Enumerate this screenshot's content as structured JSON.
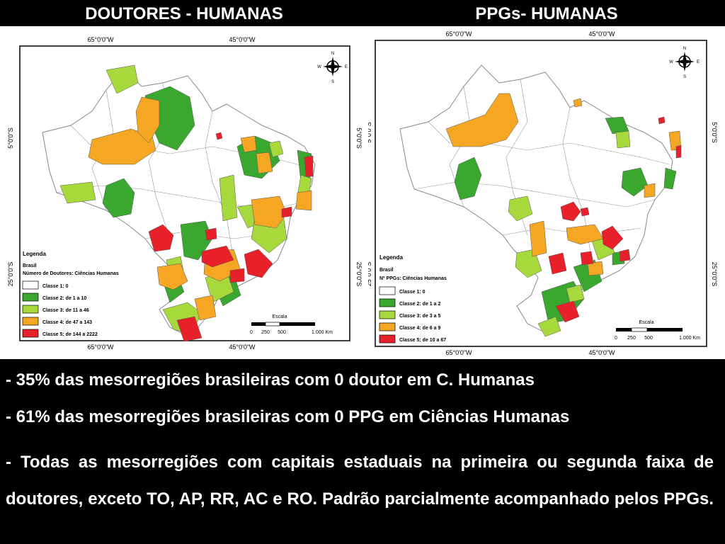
{
  "titles": {
    "left": "DOUTORES - HUMANAS",
    "right": "PPGs- HUMANAS"
  },
  "colors": {
    "class1": "#ffffff",
    "class2": "#3aa72f",
    "class3": "#a8d93c",
    "class4": "#f5a623",
    "class5": "#e8202a"
  },
  "maps": [
    {
      "coords": {
        "lon1": "65°0'0\"W",
        "lon2": "45°0'0\"W",
        "lat1": "5°0'0\"S",
        "lat2": "25°0'0\"S"
      },
      "legend": {
        "heading": "Legenda",
        "country": "Brasil",
        "title": "Número de Doutores: Ciências Humanas",
        "classes": [
          "Classe 1: 0",
          "Classe 2: de 1 a 10",
          "Classe 3: de 11 a 46",
          "Classe 4: de 47 a 143",
          "Classe 5: de 144 a 2222"
        ]
      },
      "scale": {
        "label": "Escala",
        "ticks": [
          "0",
          "250",
          "500",
          "1.000 Km"
        ]
      },
      "compass": {
        "n": "N",
        "s": "S",
        "e": "E",
        "w": "W"
      }
    },
    {
      "coords": {
        "lon1": "65°0'0\"W",
        "lon2": "45°0'0\"W",
        "lat1": "5°0'0\"S",
        "lat2": "25°0'0\"S"
      },
      "legend": {
        "heading": "Legenda",
        "country": "Brasil",
        "title": "Nº PPGs: Ciências Humanas",
        "classes": [
          "Classe 1: 0",
          "Classe 2: de 1 a 2",
          "Classe 3: de 3 a 5",
          "Classe 4: de 6 a 9",
          "Classe 5: de 10 a 67"
        ]
      },
      "scale": {
        "label": "Escala",
        "ticks": [
          "0",
          "250",
          "500",
          "1.000 Km"
        ]
      },
      "compass": {
        "n": "N",
        "s": "S",
        "e": "E",
        "w": "W"
      }
    }
  ],
  "notes": [
    "- 35% das mesorregiões brasileiras com 0 doutor em C. Humanas",
    "- 61% das mesorregiões brasileiras com 0 PPG em Ciências Humanas",
    "- Todas as mesorregiões com capitais estaduais na primeira ou segunda faixa de doutores, exceto TO, AP, RR, AC e RO. Padrão parcialmente acompanhado pelos PPGs."
  ]
}
